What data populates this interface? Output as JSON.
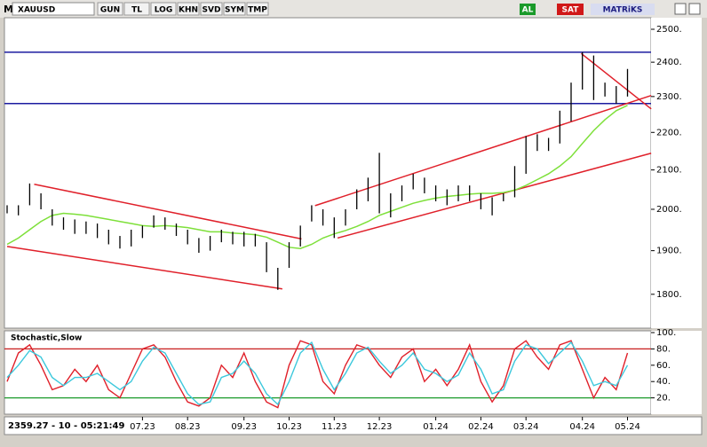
{
  "toolbar": {
    "logo": "M",
    "symbol": "XAUUSD",
    "buttons": [
      "GUN",
      "TL",
      "LOG",
      "KHN",
      "SVD",
      "SYM",
      "TMP"
    ],
    "buy": "AL",
    "sell": "SAT",
    "brand": "MATRiKS"
  },
  "status": "2359.27 - 10 - 05:21:49",
  "chart_data": [
    {
      "type": "ohlc",
      "log": true,
      "categories": [
        null,
        null,
        null,
        null,
        null,
        null,
        null,
        null,
        null,
        null,
        null,
        null,
        "07.23",
        null,
        null,
        null,
        "08.23",
        null,
        null,
        null,
        null,
        "09.23",
        null,
        null,
        null,
        "10.23",
        null,
        null,
        null,
        "11.23",
        null,
        null,
        null,
        "12.23",
        null,
        null,
        null,
        null,
        "01.24",
        null,
        null,
        null,
        "02.24",
        null,
        null,
        null,
        "03.24",
        null,
        null,
        null,
        null,
        "04.24",
        null,
        null,
        null,
        "05.24"
      ],
      "high": [
        2010,
        2010,
        2065,
        2040,
        2000,
        1980,
        1975,
        1970,
        1965,
        1950,
        1935,
        1950,
        1960,
        1985,
        1980,
        1965,
        1950,
        1930,
        1935,
        1950,
        1945,
        1945,
        1940,
        1920,
        1860,
        1920,
        1960,
        2010,
        2000,
        1980,
        2000,
        2050,
        2080,
        2145,
        2040,
        2060,
        2090,
        2080,
        2060,
        2050,
        2060,
        2060,
        2040,
        2030,
        2040,
        2110,
        2190,
        2195,
        2185,
        2260,
        2340,
        2430,
        2420,
        2340,
        2330,
        2380
      ],
      "low": [
        1990,
        1985,
        2010,
        2000,
        1960,
        1950,
        1940,
        1940,
        1930,
        1915,
        1905,
        1910,
        1930,
        1955,
        1950,
        1935,
        1915,
        1895,
        1900,
        1920,
        1915,
        1910,
        1910,
        1850,
        1810,
        1860,
        1910,
        1970,
        1960,
        1930,
        1960,
        2000,
        2020,
        1990,
        1980,
        2020,
        2050,
        2040,
        2020,
        2010,
        2020,
        2020,
        2000,
        1985,
        2020,
        2030,
        2090,
        2150,
        2150,
        2170,
        2230,
        2320,
        2290,
        2300,
        2280,
        2300
      ],
      "ma": [
        1915,
        1930,
        1950,
        1970,
        1985,
        1990,
        1988,
        1985,
        1980,
        1975,
        1970,
        1965,
        1960,
        1958,
        1960,
        1958,
        1955,
        1950,
        1945,
        1945,
        1942,
        1940,
        1938,
        1932,
        1920,
        1908,
        1905,
        1915,
        1930,
        1940,
        1948,
        1958,
        1970,
        1985,
        1995,
        2005,
        2015,
        2022,
        2028,
        2032,
        2035,
        2038,
        2040,
        2040,
        2042,
        2048,
        2060,
        2075,
        2090,
        2110,
        2135,
        2170,
        2205,
        2235,
        2260,
        2275
      ],
      "bar_color": "#000000",
      "ma_color": "#7ee03a",
      "ylim": [
        1726,
        2536
      ],
      "yticks": [
        {
          "value": 1800,
          "label": "1800."
        },
        {
          "value": 1900,
          "label": "1900."
        },
        {
          "value": 2000,
          "label": "2000."
        },
        {
          "value": 2100,
          "label": "2100."
        },
        {
          "value": 2200,
          "label": "2200."
        },
        {
          "value": 2300,
          "label": "2300."
        },
        {
          "value": 2400,
          "label": "2400."
        },
        {
          "value": 2500,
          "label": "2500."
        }
      ],
      "hlines": [
        2430,
        2280
      ],
      "hline_color": "#1c1ca0",
      "trendlines": [
        {
          "x": [
            2.4,
            26.1
          ],
          "y": [
            2063,
            1928
          ]
        },
        {
          "x": [
            0,
            24.4
          ],
          "y": [
            1910,
            1812
          ]
        },
        {
          "x": [
            27.3,
            57.1
          ],
          "y": [
            2009,
            2303
          ]
        },
        {
          "x": [
            29.3,
            57.1
          ],
          "y": [
            1930,
            2144
          ]
        },
        {
          "x": [
            50.9,
            57.1
          ],
          "y": [
            2426,
            2265
          ]
        }
      ],
      "trendline_color": "#e0202a"
    },
    {
      "type": "line",
      "title": "Stochastic,Slow",
      "series": [
        {
          "color": "#e0202a",
          "values": [
            40,
            75,
            85,
            60,
            30,
            35,
            55,
            40,
            60,
            30,
            20,
            50,
            80,
            85,
            70,
            40,
            15,
            10,
            20,
            60,
            45,
            75,
            40,
            15,
            8,
            60,
            90,
            85,
            40,
            25,
            60,
            85,
            80,
            60,
            45,
            70,
            80,
            40,
            55,
            35,
            55,
            85,
            40,
            15,
            35,
            80,
            90,
            70,
            55,
            85,
            90,
            55,
            20,
            45,
            30,
            75
          ]
        },
        {
          "color": "#3cc8dc",
          "values": [
            45,
            60,
            78,
            70,
            45,
            35,
            45,
            45,
            50,
            40,
            30,
            40,
            65,
            82,
            75,
            50,
            25,
            12,
            15,
            45,
            50,
            65,
            50,
            25,
            12,
            40,
            75,
            88,
            55,
            30,
            50,
            75,
            82,
            65,
            50,
            60,
            75,
            55,
            50,
            40,
            48,
            75,
            55,
            25,
            30,
            65,
            85,
            80,
            62,
            75,
            88,
            65,
            35,
            40,
            35,
            60
          ]
        }
      ],
      "ylim": [
        0,
        100
      ],
      "yticks": [
        {
          "value": 20,
          "label": "20."
        },
        {
          "value": 40,
          "label": "40."
        },
        {
          "value": 60,
          "label": "60."
        },
        {
          "value": 80,
          "label": "80."
        },
        {
          "value": 100,
          "label": "100."
        }
      ],
      "hlines": [
        80,
        20
      ],
      "hline_colors": [
        "#c81e1e",
        "#1a9a2a"
      ]
    }
  ]
}
